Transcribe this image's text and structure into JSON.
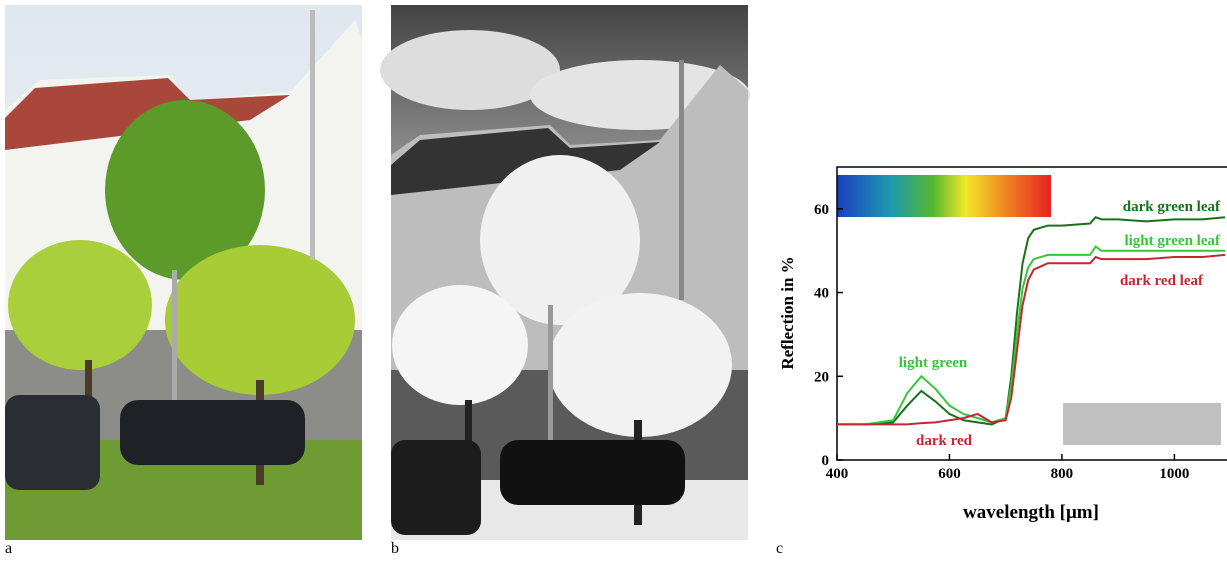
{
  "panel_labels": [
    "a",
    "b",
    "c"
  ],
  "chart_data": {
    "type": "line",
    "ylabel": "Reflection in %",
    "xlabel": "wavelength [μm]",
    "x": [
      400,
      450,
      500,
      525,
      550,
      575,
      600,
      625,
      650,
      675,
      700,
      710,
      720,
      730,
      740,
      750,
      775,
      800,
      850,
      860,
      870,
      900,
      950,
      1000,
      1050,
      1090
    ],
    "series": [
      {
        "name": "dark green leaf",
        "color": "#17721c",
        "values": [
          8.5,
          8.5,
          9,
          13,
          16.5,
          14,
          11,
          9.5,
          9,
          8.5,
          10,
          20,
          35,
          47,
          53,
          55,
          56,
          56,
          56.5,
          58,
          57.5,
          57.5,
          57,
          57.5,
          57.5,
          58
        ]
      },
      {
        "name": "light green leaf",
        "color": "#39c43c",
        "values": [
          8.5,
          8.5,
          9.5,
          16,
          20,
          17,
          13,
          11,
          10,
          9,
          10,
          18,
          30,
          41,
          46,
          48,
          49,
          49,
          49,
          51,
          50,
          50,
          50,
          50,
          50,
          50
        ]
      },
      {
        "name": "dark red leaf",
        "color": "#c3282e",
        "values": [
          8.5,
          8.5,
          8.5,
          8.5,
          8.8,
          9,
          9.5,
          10,
          11,
          9,
          9.5,
          15,
          26,
          37,
          43,
          45.5,
          47,
          47,
          47,
          48.5,
          48,
          48,
          48,
          48.5,
          48.5,
          49
        ]
      }
    ],
    "annotations": [
      "light green",
      "dark red"
    ],
    "xlim": [
      400,
      1090
    ],
    "ylim": [
      0,
      70
    ],
    "xticks": [
      400,
      600,
      800,
      1000
    ],
    "yticks": [
      0,
      20,
      40,
      60
    ]
  }
}
